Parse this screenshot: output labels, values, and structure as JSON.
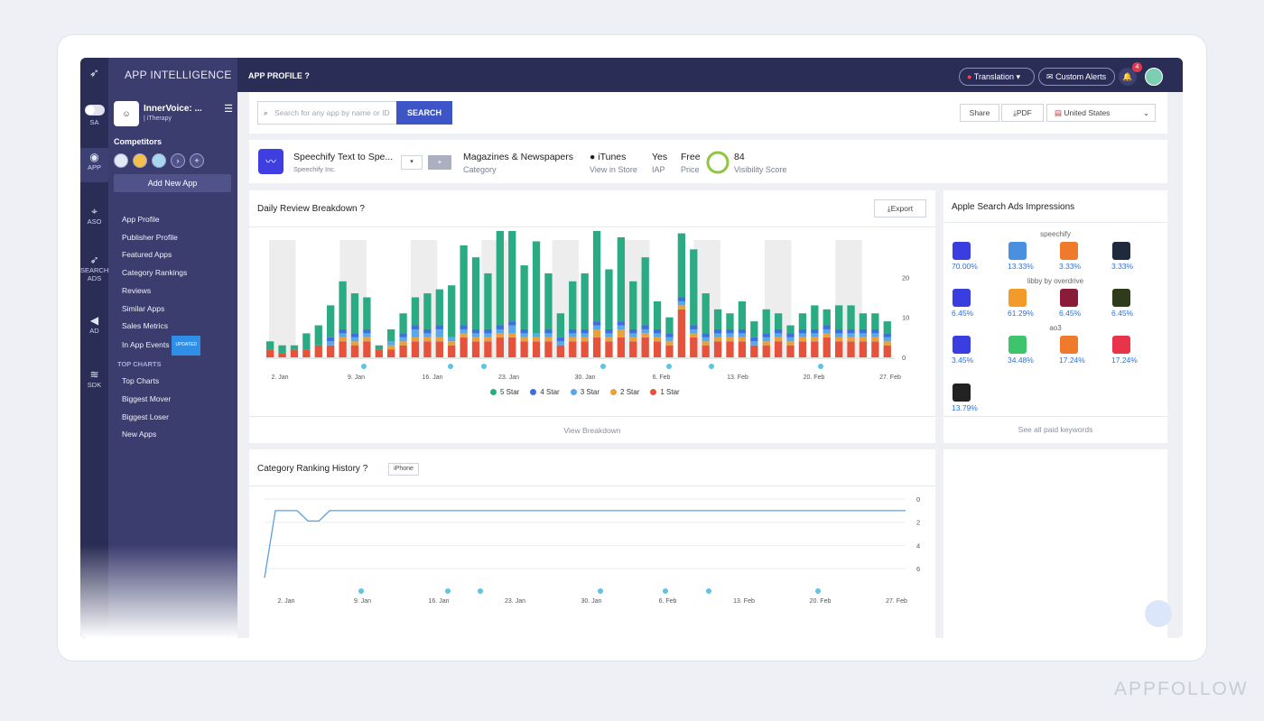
{
  "sidebar": {
    "brand": "APP INTELLIGENCE",
    "rail": [
      {
        "label": "SA",
        "icon": "toggle-icon"
      },
      {
        "label": "APP",
        "icon": "eye-icon"
      },
      {
        "label": "ASO",
        "icon": "crosshair-icon"
      },
      {
        "label": "SEARCH ADS",
        "icon": "rocket-icon"
      },
      {
        "label": "AD",
        "icon": "megaphone-icon"
      },
      {
        "label": "SDK",
        "icon": "layers-icon"
      }
    ],
    "app_name": "InnerVoice: ...",
    "app_dev": "| iTherapy",
    "competitors_label": "Competitors",
    "add_app": "Add New App",
    "nav": [
      "App Profile",
      "Publisher Profile",
      "Featured Apps",
      "Category Rankings",
      "Reviews",
      "Similar Apps",
      "Sales Metrics",
      "In App Events"
    ],
    "updated_badge": "UPDATED",
    "top_charts_header": "TOP CHARTS",
    "top_charts": [
      "Top Charts",
      "Biggest Mover",
      "Biggest Loser",
      "New Apps"
    ]
  },
  "topbar": {
    "title": "APP PROFILE",
    "translation": "Translation",
    "alerts": "Custom Alerts",
    "notif_count": "4"
  },
  "toolbar": {
    "search_placeholder": "Search for any app by name or ID",
    "search_btn": "SEARCH",
    "share": "Share",
    "pdf": "PDF",
    "country": "United States"
  },
  "app_info": {
    "name": "Speechify Text to Spe...",
    "dev": "Speechify Inc.",
    "category": "Magazines & Newspapers",
    "category_lbl": "Category",
    "store": "iTunes",
    "store_lbl": "View in Store",
    "iap": "Yes",
    "iap_lbl": "IAP",
    "price": "Free",
    "price_lbl": "Price",
    "score": "84",
    "score_lbl": "Visibility Score"
  },
  "review_card": {
    "title": "Daily Review Breakdown",
    "export": "Export",
    "footer": "View Breakdown"
  },
  "ranking_card": {
    "title": "Category Ranking History",
    "device": "iPhone"
  },
  "impressions": {
    "title": "Apple Search Ads Impressions",
    "footer": "See all paid keywords",
    "groups": [
      {
        "keyword": "speechify",
        "items": [
          {
            "pct": "70.00%",
            "color": "#3a3ee0"
          },
          {
            "pct": "13.33%",
            "color": "#4a8fe0"
          },
          {
            "pct": "3.33%",
            "color": "#f07a2c"
          },
          {
            "pct": "3.33%",
            "color": "#1f2b3d"
          }
        ]
      },
      {
        "keyword": "libby by overdrive",
        "items": [
          {
            "pct": "6.45%",
            "color": "#3a3ee0"
          },
          {
            "pct": "61.29%",
            "color": "#f39b2a"
          },
          {
            "pct": "6.45%",
            "color": "#8a1c3a"
          },
          {
            "pct": "6.45%",
            "color": "#2f3b1a"
          }
        ]
      },
      {
        "keyword": "ao3",
        "items": [
          {
            "pct": "3.45%",
            "color": "#3a3ee0"
          },
          {
            "pct": "34.48%",
            "color": "#3ec46d"
          },
          {
            "pct": "17.24%",
            "color": "#f07a2c"
          },
          {
            "pct": "17.24%",
            "color": "#e8334a"
          }
        ]
      },
      {
        "keyword": "",
        "items": [
          {
            "pct": "13.79%",
            "color": "#222222"
          }
        ]
      }
    ]
  },
  "chart_data": [
    {
      "type": "bar",
      "title": "Daily Review Breakdown",
      "x_ticks": [
        "2. Jan",
        "9. Jan",
        "16. Jan",
        "23. Jan",
        "30. Jan",
        "6. Feb",
        "13. Feb",
        "20. Feb",
        "27. Feb"
      ],
      "y_ticks": [
        "20",
        "10",
        "0"
      ],
      "ylim": [
        0,
        30
      ],
      "colors": {
        "5 Star": "#2bab83",
        "4 Star": "#3f6fdc",
        "3 Star": "#58a9ea",
        "2 Star": "#e9a13b",
        "1 Star": "#e5533d"
      },
      "series": [
        {
          "name": "5 Star",
          "values": [
            2,
            2,
            1,
            4,
            5,
            8,
            12,
            10,
            8,
            1,
            3,
            5,
            7,
            9,
            9,
            13,
            20,
            18,
            14,
            25,
            24,
            16,
            23,
            14,
            6,
            12,
            14,
            23,
            15,
            21,
            12,
            17,
            7,
            4,
            16,
            19,
            10,
            5,
            4,
            7,
            4,
            6,
            4,
            2,
            4,
            6,
            4,
            6,
            6,
            4,
            4,
            3
          ]
        },
        {
          "name": "4 Star",
          "values": [
            0,
            0,
            0,
            0,
            0,
            1,
            1,
            1,
            1,
            0,
            0,
            1,
            1,
            1,
            1,
            0,
            1,
            1,
            1,
            1,
            1,
            1,
            0,
            1,
            1,
            1,
            1,
            1,
            1,
            1,
            1,
            1,
            1,
            1,
            1,
            1,
            1,
            1,
            1,
            1,
            1,
            1,
            1,
            1,
            1,
            1,
            1,
            1,
            1,
            1,
            1,
            1
          ]
        },
        {
          "name": "3 Star",
          "values": [
            0,
            0,
            0,
            0,
            0,
            1,
            1,
            1,
            1,
            0,
            1,
            1,
            2,
            1,
            2,
            1,
            1,
            1,
            1,
            1,
            2,
            1,
            1,
            1,
            1,
            1,
            1,
            1,
            1,
            1,
            1,
            1,
            1,
            1,
            1,
            1,
            1,
            1,
            1,
            1,
            1,
            1,
            1,
            1,
            1,
            1,
            1,
            1,
            1,
            1,
            1,
            1
          ]
        },
        {
          "name": "2 Star",
          "values": [
            0,
            0,
            0,
            0,
            0,
            0,
            1,
            1,
            1,
            0,
            1,
            1,
            1,
            1,
            1,
            1,
            1,
            1,
            1,
            1,
            1,
            1,
            1,
            1,
            0,
            1,
            1,
            2,
            1,
            2,
            1,
            1,
            1,
            1,
            1,
            1,
            1,
            1,
            1,
            1,
            0,
            1,
            1,
            1,
            1,
            1,
            1,
            1,
            1,
            1,
            1,
            1
          ]
        },
        {
          "name": "1 Star",
          "values": [
            2,
            1,
            2,
            2,
            3,
            3,
            4,
            3,
            4,
            2,
            2,
            3,
            4,
            4,
            4,
            3,
            5,
            4,
            4,
            5,
            5,
            4,
            4,
            4,
            3,
            4,
            4,
            5,
            4,
            5,
            4,
            5,
            4,
            3,
            12,
            5,
            3,
            4,
            4,
            4,
            3,
            3,
            4,
            3,
            4,
            4,
            5,
            4,
            4,
            4,
            4,
            3
          ]
        }
      ]
    },
    {
      "type": "line",
      "title": "Category Ranking History",
      "x_ticks": [
        "2. Jan",
        "9. Jan",
        "16. Jan",
        "23. Jan",
        "30. Jan",
        "6. Feb",
        "13. Feb",
        "20. Feb",
        "27. Feb"
      ],
      "y_ticks": [
        "0",
        "2",
        "4",
        "6"
      ],
      "ylim": [
        0,
        7
      ],
      "series": [
        {
          "values": [
            6.8,
            1,
            1,
            1,
            1.9,
            1.9,
            1,
            1,
            1,
            1,
            1,
            1,
            1,
            1,
            1,
            1,
            1,
            1,
            1,
            1,
            1,
            1,
            1,
            1,
            1,
            1,
            1,
            1,
            1,
            1,
            1,
            1,
            1,
            1,
            1,
            1,
            1,
            1,
            1,
            1,
            1,
            1,
            1,
            1,
            1,
            1,
            1,
            1,
            1,
            1,
            1,
            1,
            1,
            1,
            1,
            1,
            1,
            1,
            1,
            1
          ]
        }
      ],
      "color": "#5b9fe0"
    }
  ],
  "watermark": "APPFOLLOW"
}
